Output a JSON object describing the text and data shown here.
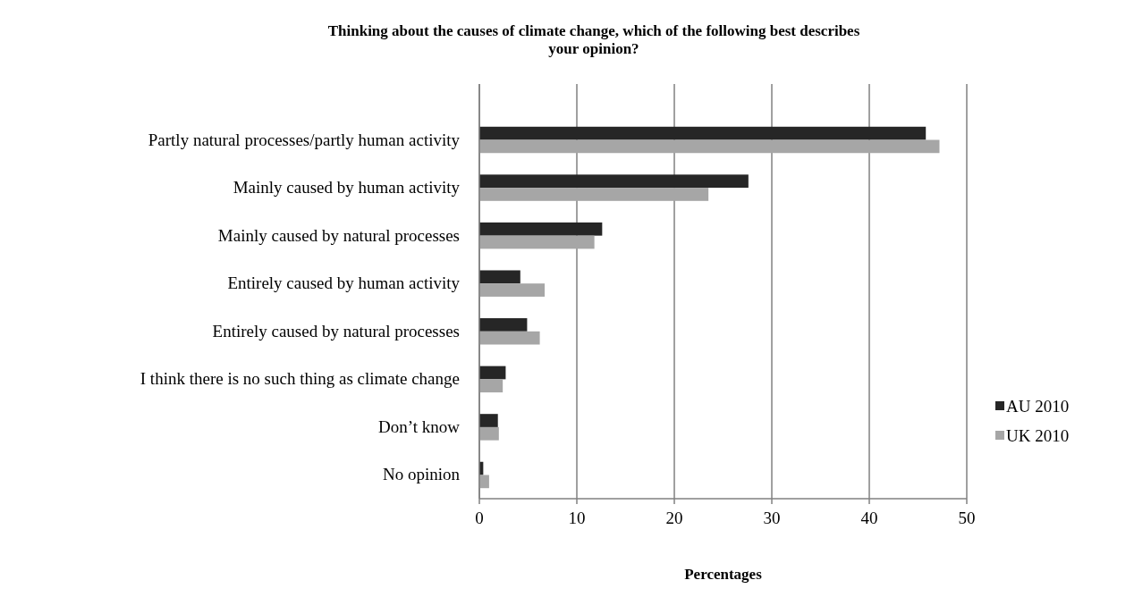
{
  "chart_data": {
    "type": "bar",
    "orientation": "horizontal",
    "title": "Thinking about the causes of climate change, which of the following best describes your opinion?",
    "xlabel": "Percentages",
    "categories": [
      "Partly natural processes/partly human activity",
      "Mainly caused by human activity",
      "Mainly caused by natural processes",
      "Entirely caused by human activity",
      "Entirely caused by natural processes",
      "I think there is no such thing as climate change",
      "Don’t know",
      "No opinion"
    ],
    "series": [
      {
        "name": "AU 2010",
        "color": "#262626",
        "values": [
          45.8,
          27.6,
          12.6,
          4.2,
          4.9,
          2.7,
          1.9,
          0.4
        ]
      },
      {
        "name": "UK 2010",
        "color": "#a6a6a6",
        "values": [
          47.2,
          23.5,
          11.8,
          6.7,
          6.2,
          2.4,
          2.0,
          1.0
        ]
      }
    ],
    "xlim": [
      0,
      50
    ],
    "xticks": [
      0,
      10,
      20,
      30,
      40,
      50
    ],
    "grid": "x",
    "legend": "right"
  }
}
